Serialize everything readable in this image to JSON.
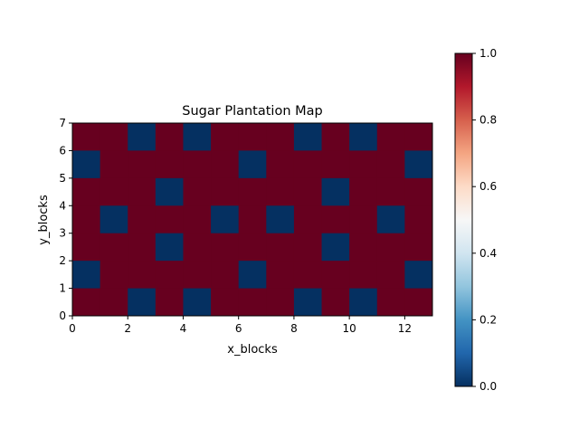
{
  "chart_data": {
    "type": "heatmap",
    "title": "Sugar Plantation Map",
    "xlabel": "x_blocks",
    "ylabel": "y_blocks",
    "xlim": [
      0,
      13
    ],
    "ylim": [
      0,
      7
    ],
    "x_ticks": [
      "0",
      "2",
      "4",
      "6",
      "8",
      "10",
      "12"
    ],
    "y_ticks": [
      "0",
      "1",
      "2",
      "3",
      "4",
      "5",
      "6",
      "7"
    ],
    "colormap": "RdBu_r",
    "color_low": "#053061",
    "color_high": "#67001f",
    "colorbar": {
      "range": [
        0.0,
        1.0
      ],
      "ticks": [
        "0.0",
        "0.2",
        "0.4",
        "0.6",
        "0.8",
        "1.0"
      ]
    },
    "grid_values": [
      [
        1,
        1,
        0,
        1,
        0,
        1,
        1,
        1,
        0,
        1,
        0,
        1,
        1
      ],
      [
        0,
        1,
        1,
        1,
        1,
        1,
        0,
        1,
        1,
        1,
        1,
        1,
        0
      ],
      [
        1,
        1,
        1,
        0,
        1,
        1,
        1,
        1,
        1,
        0,
        1,
        1,
        1
      ],
      [
        1,
        0,
        1,
        1,
        1,
        0,
        1,
        0,
        1,
        1,
        1,
        0,
        1
      ],
      [
        1,
        1,
        1,
        0,
        1,
        1,
        1,
        1,
        1,
        0,
        1,
        1,
        1
      ],
      [
        0,
        1,
        1,
        1,
        1,
        1,
        0,
        1,
        1,
        1,
        1,
        1,
        0
      ],
      [
        1,
        1,
        0,
        1,
        0,
        1,
        1,
        1,
        0,
        1,
        0,
        1,
        1
      ]
    ],
    "grid_row_order": "top-to-bottom"
  }
}
